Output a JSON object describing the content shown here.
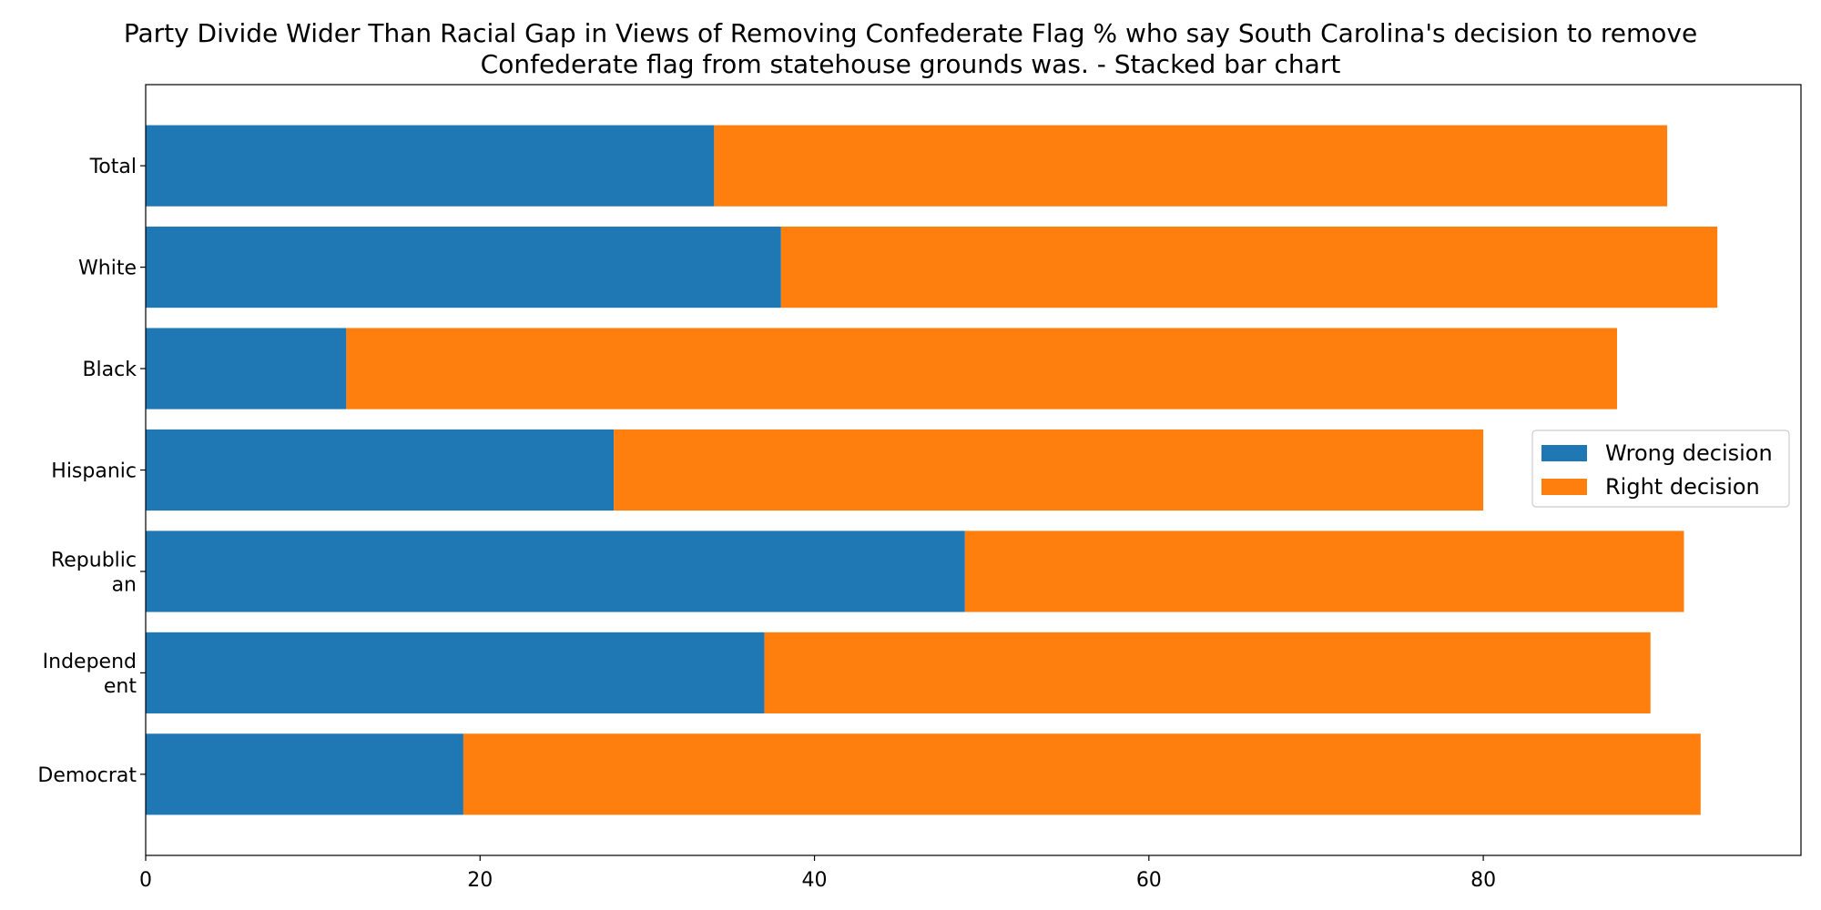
{
  "chart_data": {
    "type": "bar",
    "orientation": "horizontal",
    "stacked": true,
    "title": "Party Divide Wider Than Racial Gap in Views of Removing Confederate Flag % who say South Carolina's decision to remove\nConfederate flag from statehouse grounds was.  - Stacked bar chart",
    "xlabel": "",
    "ylabel": "",
    "categories": [
      "Total",
      "White",
      "Black",
      "Hispanic",
      "Republic\nan",
      "Independ\nent",
      "Democrat"
    ],
    "series": [
      {
        "name": "Wrong decision",
        "color": "#1f77b4",
        "values": [
          34,
          38,
          12,
          28,
          49,
          37,
          19
        ]
      },
      {
        "name": "Right decision",
        "color": "#ff7f0e",
        "values": [
          57,
          56,
          76,
          52,
          43,
          53,
          74
        ]
      }
    ],
    "xlim": [
      0,
      99
    ],
    "xticks": [
      0,
      20,
      40,
      60,
      80
    ],
    "grid": false,
    "legend_position": "center-right"
  }
}
